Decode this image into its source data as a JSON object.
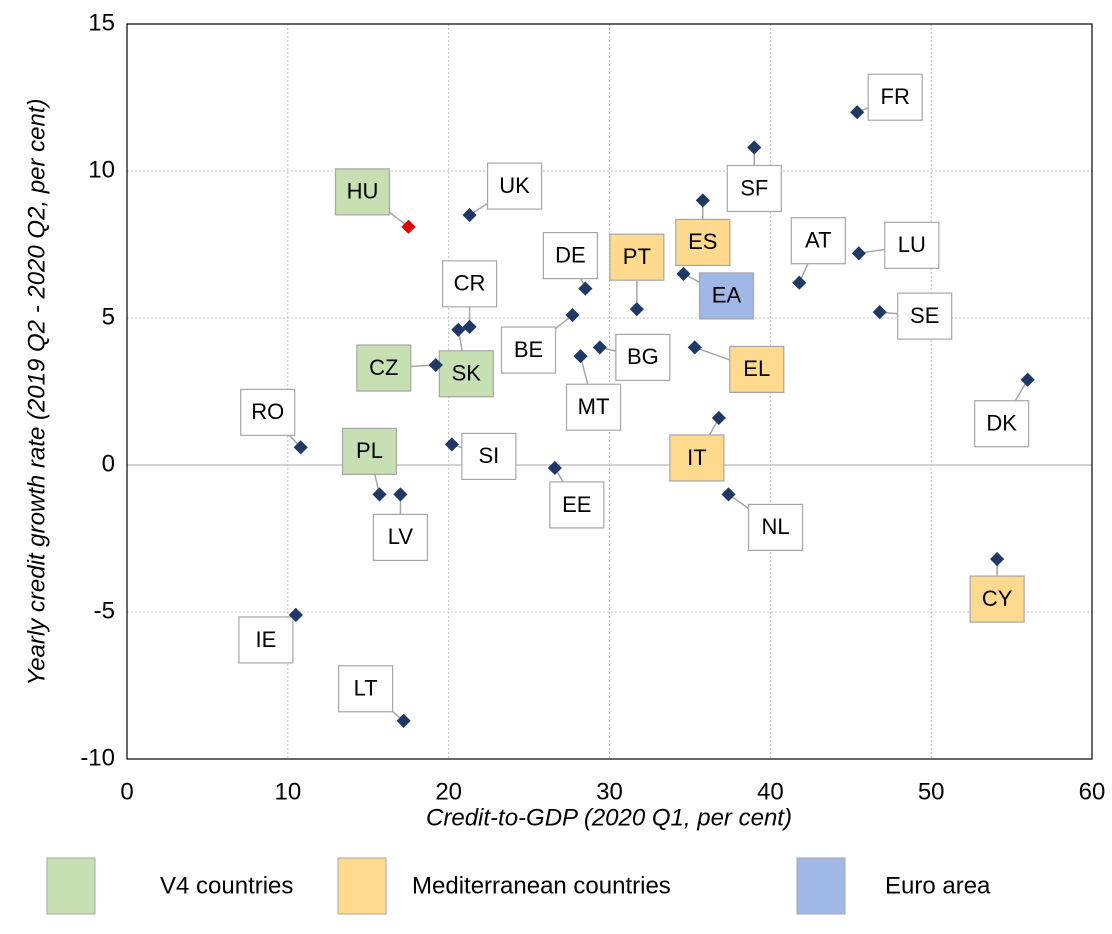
{
  "chart_data": {
    "type": "scatter",
    "x_label": "Credit-to-GDP (2020 Q1, per cent)",
    "y_label": "Yearly credit growth rate (2019 Q2 - 2020 Q2, per cent)",
    "xlim": [
      0,
      60
    ],
    "xticks": [
      0,
      10,
      20,
      30,
      40,
      50,
      60
    ],
    "ylim": [
      -10,
      15
    ],
    "yticks": [
      -10,
      -5,
      0,
      5,
      10,
      15
    ],
    "grid": true,
    "marker_color": "#1f3864",
    "highlighted_point": 0,
    "highlight_color": "#e00000",
    "label_color": "#ffffff",
    "legend": [
      {
        "name": "V4 countries",
        "color": "#c6e0b4"
      },
      {
        "name": "Mediterranean countries",
        "color": "#ffd98e"
      },
      {
        "name": "Euro area",
        "color": "#9fb8e8"
      }
    ],
    "points": [
      {
        "label": "HU",
        "x": 17.5,
        "y": 8.1,
        "group": 0
      },
      {
        "label": "UK",
        "x": 21.3,
        "y": 8.5,
        "group": null
      },
      {
        "label": "FR",
        "x": 45.4,
        "y": 12.0,
        "group": null
      },
      {
        "label": "SF",
        "x": 39.0,
        "y": 10.8,
        "group": null
      },
      {
        "label": "ES",
        "x": 35.8,
        "y": 9.0,
        "group": 1
      },
      {
        "label": "DE",
        "x": 28.5,
        "y": 6.0,
        "group": null
      },
      {
        "label": "PT",
        "x": 31.7,
        "y": 5.3,
        "group": 1
      },
      {
        "label": "EA",
        "x": 34.6,
        "y": 6.5,
        "group": 2
      },
      {
        "label": "AT",
        "x": 41.8,
        "y": 6.2,
        "group": null
      },
      {
        "label": "LU",
        "x": 45.5,
        "y": 7.2,
        "group": null
      },
      {
        "label": "SE",
        "x": 46.8,
        "y": 5.2,
        "group": null
      },
      {
        "label": "CR",
        "x": 21.3,
        "y": 4.7,
        "group": null
      },
      {
        "label": "SK",
        "x": 20.6,
        "y": 4.6,
        "group": 0
      },
      {
        "label": "CZ",
        "x": 19.2,
        "y": 3.4,
        "group": 0
      },
      {
        "label": "BE",
        "x": 27.7,
        "y": 5.1,
        "group": null
      },
      {
        "label": "BG",
        "x": 29.4,
        "y": 4.0,
        "group": null
      },
      {
        "label": "MT",
        "x": 28.2,
        "y": 3.7,
        "group": null
      },
      {
        "label": "EL",
        "x": 35.3,
        "y": 4.0,
        "group": 1
      },
      {
        "label": "DK",
        "x": 56.0,
        "y": 2.9,
        "group": null
      },
      {
        "label": "CY",
        "x": 54.1,
        "y": -3.2,
        "group": 1
      },
      {
        "label": "RO",
        "x": 10.8,
        "y": 0.6,
        "group": null
      },
      {
        "label": "SI",
        "x": 20.2,
        "y": 0.7,
        "group": null
      },
      {
        "label": "IT",
        "x": 36.8,
        "y": 1.6,
        "group": 1
      },
      {
        "label": "EE",
        "x": 26.6,
        "y": -0.1,
        "group": null
      },
      {
        "label": "PL",
        "x": 15.7,
        "y": -1.0,
        "group": 0
      },
      {
        "label": "LV",
        "x": 17.0,
        "y": -1.0,
        "group": null
      },
      {
        "label": "NL",
        "x": 37.4,
        "y": -1.0,
        "group": null
      },
      {
        "label": "IE",
        "x": 10.5,
        "y": -5.1,
        "group": null
      },
      {
        "label": "LT",
        "x": 17.2,
        "y": -8.7,
        "group": null
      }
    ]
  }
}
